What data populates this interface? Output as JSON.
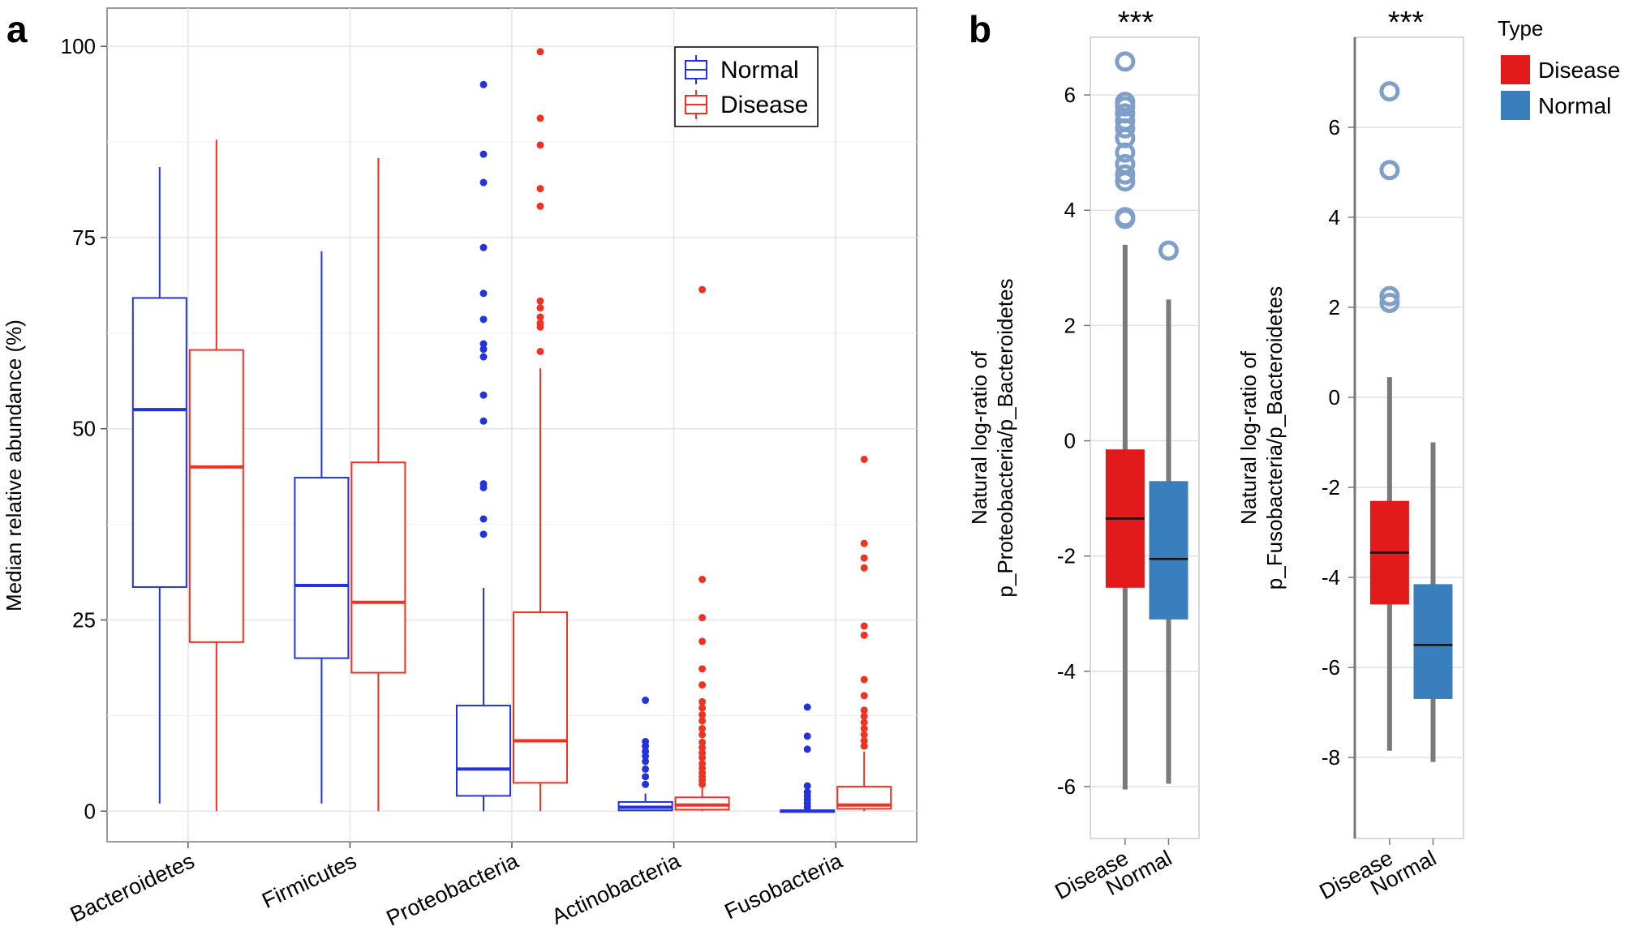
{
  "panel_labels": {
    "a": "a",
    "b": "b"
  },
  "colors": {
    "normal_line": "#2233dd",
    "disease_line": "#ee3322",
    "disease_fill": "#e31a1c",
    "normal_fill": "#3a7fbd",
    "whisker_gray": "#7a7a7a",
    "outlier_ring": "#7f9fc8"
  },
  "chart_data": [
    {
      "id": "panel-a",
      "type": "box",
      "title": "",
      "xlabel": "",
      "ylabel": "Median relative abundance (%)",
      "ylim": [
        -4,
        105
      ],
      "yticks": [
        0,
        25,
        50,
        75,
        100
      ],
      "grid": true,
      "legend": {
        "placement": "top-right",
        "entries": [
          "Normal",
          "Disease"
        ]
      },
      "categories": [
        "Bacteroidetes",
        "Firmicutes",
        "Proteobacteria",
        "Actinobacteria",
        "Fusobacteria"
      ],
      "series": [
        {
          "name": "Normal",
          "boxes": [
            {
              "whisker_low": 1,
              "q1": 29.3,
              "median": 52.5,
              "q3": 67.1,
              "whisker_high": 84.2,
              "outliers": []
            },
            {
              "whisker_low": 1,
              "q1": 20,
              "median": 29.5,
              "q3": 43.6,
              "whisker_high": 73.2,
              "outliers": []
            },
            {
              "whisker_low": 0,
              "q1": 2,
              "median": 5.5,
              "q3": 13.8,
              "whisker_high": 29.2,
              "outliers": [
                36.2,
                38.2,
                42.3,
                42.8,
                51,
                54.4,
                59.4,
                60.4,
                61.1,
                64.3,
                67.7,
                73.7,
                82.2,
                85.9,
                95
              ]
            },
            {
              "whisker_low": 0,
              "q1": 0.1,
              "median": 0.5,
              "q3": 1.2,
              "whisker_high": 2.3,
              "outliers": [
                3.5,
                4.5,
                5.5,
                6.5,
                7.2,
                7.8,
                8.5,
                9.1,
                14.5
              ]
            },
            {
              "whisker_low": 0,
              "q1": 0,
              "median": 0,
              "q3": 0.1,
              "whisker_high": 0.2,
              "outliers": [
                0.5,
                1,
                1.5,
                2,
                2.5,
                3.3,
                8.1,
                9.8,
                13.6
              ]
            }
          ]
        },
        {
          "name": "Disease",
          "boxes": [
            {
              "whisker_low": 0,
              "q1": 22.1,
              "median": 45,
              "q3": 60.3,
              "whisker_high": 87.8,
              "outliers": []
            },
            {
              "whisker_low": 0,
              "q1": 18.1,
              "median": 27.3,
              "q3": 45.6,
              "whisker_high": 85.4,
              "outliers": []
            },
            {
              "whisker_low": 0,
              "q1": 3.7,
              "median": 9.2,
              "q3": 26,
              "whisker_high": 57.9,
              "outliers": [
                60.1,
                63.3,
                63.8,
                64.6,
                65.8,
                66.7,
                79.1,
                81.4,
                87.1,
                90.6,
                99.3
              ]
            },
            {
              "whisker_low": 0,
              "q1": 0.2,
              "median": 0.8,
              "q3": 1.8,
              "whisker_high": 3,
              "outliers": [
                3.5,
                4,
                4.5,
                5,
                5.6,
                6.2,
                7,
                7.6,
                8.3,
                9,
                10,
                10.8,
                11.8,
                12.6,
                13.5,
                14.3,
                16.5,
                18.6,
                22.2,
                25.3,
                30.3,
                68.2
              ]
            },
            {
              "whisker_low": 0,
              "q1": 0.3,
              "median": 0.8,
              "q3": 3.2,
              "whisker_high": 7.8,
              "outliers": [
                8.5,
                9.2,
                10,
                10.8,
                11.6,
                12.4,
                13.2,
                15.1,
                17.2,
                23,
                24.2,
                31.8,
                33.1,
                35,
                46
              ]
            }
          ]
        }
      ]
    },
    {
      "id": "panel-b1",
      "type": "box",
      "title": "***",
      "xlabel": "",
      "ylabel_line1": "Natural log-ratio of",
      "ylabel_line2": "p_Proteobacteria/p_Bacteroidetes",
      "ylim": [
        -6.9,
        7.0
      ],
      "yticks": [
        -6,
        -4,
        -2,
        0,
        2,
        4,
        6
      ],
      "tick_labels": [
        "-6",
        "-4",
        "-2",
        "0",
        "2",
        "4",
        "6"
      ],
      "grid": true,
      "categories": [
        "Disease",
        "Normal"
      ],
      "boxes": [
        {
          "whisker_low": -6.05,
          "q1": -2.55,
          "median": -1.35,
          "q3": -0.15,
          "whisker_high": 3.4,
          "outliers": [
            3.85,
            3.88,
            4.5,
            4.62,
            4.8,
            5.0,
            5.25,
            5.42,
            5.55,
            5.68,
            5.8,
            5.88,
            6.58
          ]
        },
        {
          "whisker_low": -5.95,
          "q1": -3.1,
          "median": -2.05,
          "q3": -0.7,
          "whisker_high": 2.45,
          "outliers": [
            3.3
          ]
        }
      ]
    },
    {
      "id": "panel-b2",
      "type": "box",
      "title": "***",
      "xlabel": "",
      "ylabel_line1": "Natural log-ratio of",
      "ylabel_line2": "p_Fusobacteria/p_Bacteroidetes",
      "ylim": [
        -9.8,
        8.0
      ],
      "yticks": [
        -8,
        -6,
        -4,
        -2,
        0,
        2,
        4,
        6
      ],
      "tick_labels": [
        "-8",
        "-6",
        "-4",
        "-2",
        "0",
        "2",
        "4",
        "6"
      ],
      "grid": true,
      "categories": [
        "Disease",
        "Normal"
      ],
      "legend": {
        "placement": "right",
        "title": "Type",
        "entries": [
          "Disease",
          "Normal"
        ]
      },
      "boxes": [
        {
          "whisker_low": -7.85,
          "q1": -4.6,
          "median": -3.45,
          "q3": -2.3,
          "whisker_high": 0.45,
          "outliers": [
            2.1,
            2.25,
            5.05,
            6.8
          ]
        },
        {
          "whisker_low": -8.1,
          "q1": -6.7,
          "median": -5.5,
          "q3": -4.15,
          "whisker_high": -1.0,
          "outliers": []
        }
      ]
    }
  ]
}
